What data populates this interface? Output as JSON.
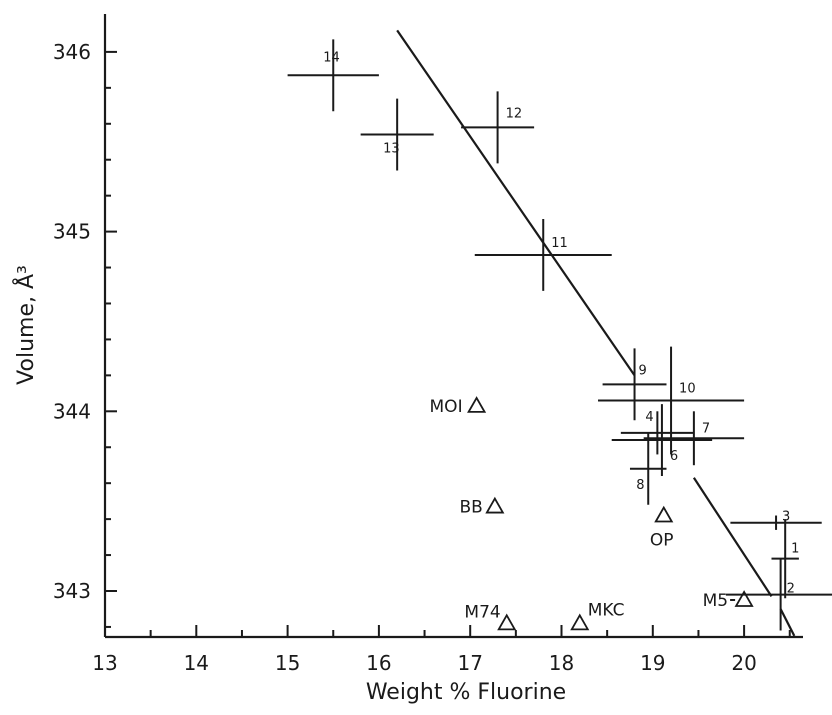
{
  "chart_data": {
    "type": "scatter",
    "title": "",
    "xlabel": "Weight % Fluorine",
    "ylabel": "Volume, Å³",
    "xlim": [
      13,
      20.6
    ],
    "ylim": [
      342.75,
      346.2
    ],
    "x_ticks": [
      13,
      14,
      15,
      16,
      17,
      18,
      19,
      20
    ],
    "y_ticks": [
      343,
      344,
      345,
      346
    ],
    "x_tick_labels": [
      "13",
      "14",
      "15",
      "16",
      "17",
      "18",
      "19",
      "20"
    ],
    "y_tick_labels": [
      "343",
      "344",
      "345",
      "346"
    ],
    "series": [
      {
        "marker": "cross",
        "points": [
          {
            "label": "1",
            "x": 20.45,
            "y": 343.18,
            "xerr": 0.15,
            "yerr": 0.22
          },
          {
            "label": "2",
            "x": 20.4,
            "y": 342.98,
            "xerr": 0.6,
            "yerr": 0.2
          },
          {
            "label": "3",
            "x": 20.35,
            "y": 343.38,
            "xerr": 0.5,
            "yerr": 0.04
          },
          {
            "label": "4",
            "x": 19.05,
            "y": 343.88,
            "xerr": 0.4,
            "yerr": 0.12
          },
          {
            "label": "6",
            "x": 19.1,
            "y": 343.84,
            "xerr": 0.55,
            "yerr": 0.2
          },
          {
            "label": "7",
            "x": 19.45,
            "y": 343.85,
            "xerr": 0.55,
            "yerr": 0.15
          },
          {
            "label": "8",
            "x": 18.95,
            "y": 343.68,
            "xerr": 0.2,
            "yerr": 0.2
          },
          {
            "label": "9",
            "x": 18.8,
            "y": 344.15,
            "xerr": 0.35,
            "yerr": 0.2
          },
          {
            "label": "10",
            "x": 19.2,
            "y": 344.06,
            "xerr": 0.8,
            "yerr": 0.3
          },
          {
            "label": "11",
            "x": 17.8,
            "y": 344.87,
            "xerr": 0.75,
            "yerr": 0.2
          },
          {
            "label": "12",
            "x": 17.3,
            "y": 345.58,
            "xerr": 0.4,
            "yerr": 0.2
          },
          {
            "label": "13",
            "x": 16.2,
            "y": 345.54,
            "xerr": 0.4,
            "yerr": 0.2
          },
          {
            "label": "14",
            "x": 15.5,
            "y": 345.87,
            "xerr": 0.5,
            "yerr": 0.2
          }
        ]
      },
      {
        "marker": "triangle",
        "points": [
          {
            "label": "MOI",
            "x": 17.07,
            "y": 344.03
          },
          {
            "label": "BB",
            "x": 17.27,
            "y": 343.47
          },
          {
            "label": "OP",
            "x": 19.12,
            "y": 343.42
          },
          {
            "label": "M5",
            "x": 20.0,
            "y": 342.95
          },
          {
            "label": "M74",
            "x": 17.4,
            "y": 342.82
          },
          {
            "label": "MKC",
            "x": 18.2,
            "y": 342.82
          }
        ]
      }
    ],
    "fit_lines": [
      {
        "x": [
          16.2,
          18.8
        ],
        "y": [
          346.12,
          344.2
        ]
      },
      {
        "x": [
          19.45,
          20.3
        ],
        "y": [
          343.63,
          342.97
        ]
      },
      {
        "x": [
          20.4,
          20.55
        ],
        "y": [
          342.9,
          342.75
        ]
      }
    ],
    "grid": false,
    "legend": "none"
  }
}
